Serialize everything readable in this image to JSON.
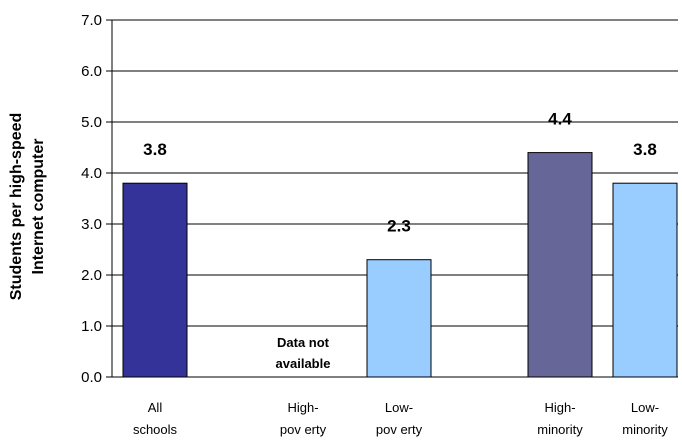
{
  "chart_data": {
    "type": "bar",
    "title": "",
    "xlabel": "",
    "ylabel": [
      "Students per high-speed",
      "Internet computer"
    ],
    "ylim": [
      0,
      7
    ],
    "yticks": [
      "0.0",
      "1.0",
      "2.0",
      "3.0",
      "4.0",
      "5.0",
      "6.0",
      "7.0"
    ],
    "grid": true,
    "legend": "none",
    "bars": [
      {
        "label": [
          "All",
          "schools"
        ],
        "value": 3.8,
        "value_label": "3.8",
        "color": "#333399"
      },
      {
        "label": [
          "High-",
          "pov erty"
        ],
        "value": null,
        "value_label": "",
        "color": "#99ccff"
      },
      {
        "label": [
          "Low-",
          "pov erty"
        ],
        "value": 2.3,
        "value_label": "2.3",
        "color": "#99ccff"
      },
      {
        "label": [
          "High-",
          "minority"
        ],
        "value": 4.4,
        "value_label": "4.4",
        "color": "#666699"
      },
      {
        "label": [
          "Low-",
          "minority"
        ],
        "value": 3.8,
        "value_label": "3.8",
        "color": "#99ccff"
      }
    ],
    "annotation": [
      "Data not",
      "available"
    ]
  }
}
